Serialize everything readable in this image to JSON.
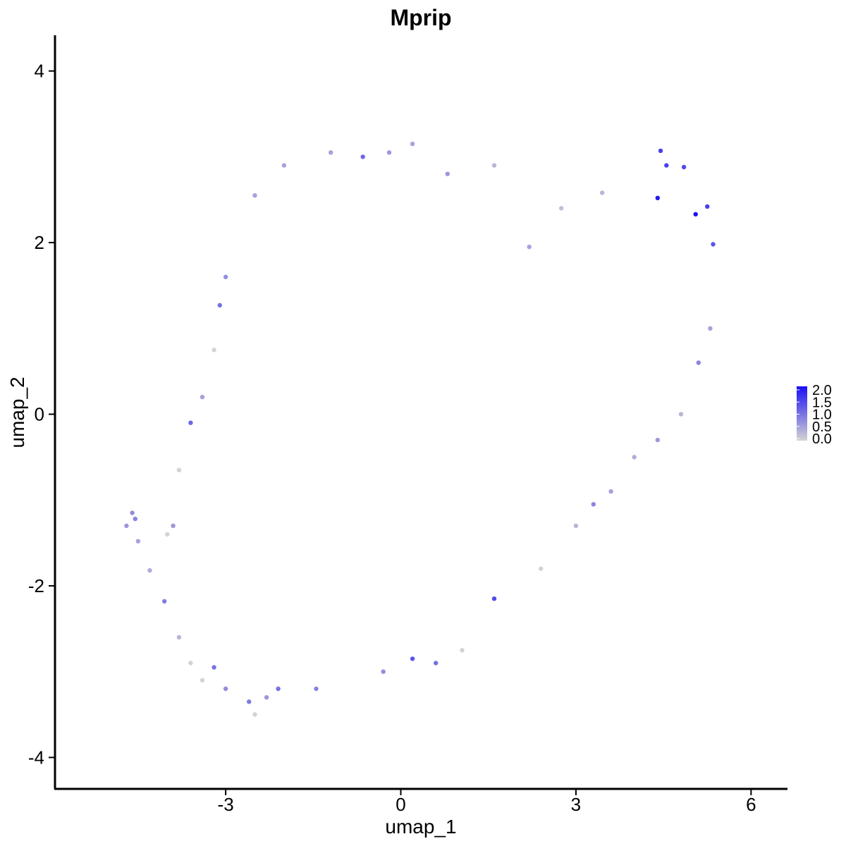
{
  "chart_data": {
    "type": "scatter",
    "title": "Mprip",
    "xlabel": "umap_1",
    "ylabel": "umap_2",
    "xlim": [
      -5.9,
      6.6
    ],
    "ylim": [
      -4.35,
      4.4
    ],
    "x_ticks": [
      -3,
      0,
      3,
      6
    ],
    "x_tick_labels": [
      "-3",
      "0",
      "3",
      "6"
    ],
    "y_ticks": [
      -4,
      -2,
      0,
      2,
      4
    ],
    "y_tick_labels": [
      "-4",
      "-2",
      "0",
      "2",
      "4"
    ],
    "grid": false,
    "legend": {
      "placement": "right",
      "type": "continuous colorbar",
      "range": [
        0.0,
        2.0
      ],
      "labels": [
        "2.0",
        "1.5",
        "1.0",
        "0.5",
        "0.0"
      ],
      "low_color": "#d3d3d3",
      "high_color": "#1a0ff5"
    },
    "colors": {
      "low": "#d3d3d3",
      "high": "#1a0ff5"
    },
    "points": [
      {
        "x": -4.7,
        "y": -1.3,
        "v": 0.6
      },
      {
        "x": -4.6,
        "y": -1.15,
        "v": 0.7
      },
      {
        "x": -4.55,
        "y": -1.22,
        "v": 0.8
      },
      {
        "x": -4.5,
        "y": -1.48,
        "v": 0.5
      },
      {
        "x": -4.3,
        "y": -1.82,
        "v": 0.4
      },
      {
        "x": -4.05,
        "y": -2.18,
        "v": 0.9
      },
      {
        "x": -4.0,
        "y": -1.4,
        "v": 0.0
      },
      {
        "x": -3.8,
        "y": -2.6,
        "v": 0.3
      },
      {
        "x": -3.6,
        "y": -2.9,
        "v": 0.0
      },
      {
        "x": -3.4,
        "y": -3.1,
        "v": 0.0
      },
      {
        "x": -3.2,
        "y": -2.95,
        "v": 1.0
      },
      {
        "x": -3.0,
        "y": -3.2,
        "v": 0.7
      },
      {
        "x": -2.6,
        "y": -3.35,
        "v": 0.9
      },
      {
        "x": -2.5,
        "y": -3.5,
        "v": 0.0
      },
      {
        "x": -2.3,
        "y": -3.3,
        "v": 0.6
      },
      {
        "x": -2.1,
        "y": -3.2,
        "v": 1.0
      },
      {
        "x": -1.45,
        "y": -3.2,
        "v": 0.8
      },
      {
        "x": -0.3,
        "y": -3.0,
        "v": 0.7
      },
      {
        "x": 0.2,
        "y": -2.85,
        "v": 1.3
      },
      {
        "x": 0.6,
        "y": -2.9,
        "v": 1.0
      },
      {
        "x": 1.05,
        "y": -2.75,
        "v": 0.0
      },
      {
        "x": 1.6,
        "y": -2.15,
        "v": 1.4
      },
      {
        "x": 2.4,
        "y": -1.8,
        "v": 0.0
      },
      {
        "x": 3.0,
        "y": -1.3,
        "v": 0.3
      },
      {
        "x": 3.3,
        "y": -1.05,
        "v": 0.8
      },
      {
        "x": 3.6,
        "y": -0.9,
        "v": 0.5
      },
      {
        "x": 4.0,
        "y": -0.5,
        "v": 0.4
      },
      {
        "x": 4.4,
        "y": -0.3,
        "v": 0.6
      },
      {
        "x": 4.8,
        "y": 0.0,
        "v": 0.3
      },
      {
        "x": 5.1,
        "y": 0.6,
        "v": 0.8
      },
      {
        "x": 5.3,
        "y": 1.0,
        "v": 0.5
      },
      {
        "x": 5.35,
        "y": 1.98,
        "v": 1.3
      },
      {
        "x": 5.25,
        "y": 2.42,
        "v": 1.5
      },
      {
        "x": 5.05,
        "y": 2.33,
        "v": 2.0
      },
      {
        "x": 4.85,
        "y": 2.88,
        "v": 1.4
      },
      {
        "x": 4.55,
        "y": 2.9,
        "v": 1.5
      },
      {
        "x": 4.45,
        "y": 3.07,
        "v": 1.5
      },
      {
        "x": 4.4,
        "y": 2.52,
        "v": 1.9
      },
      {
        "x": 3.45,
        "y": 2.58,
        "v": 0.3
      },
      {
        "x": 2.75,
        "y": 2.4,
        "v": 0.2
      },
      {
        "x": 2.2,
        "y": 1.95,
        "v": 0.5
      },
      {
        "x": 1.6,
        "y": 2.9,
        "v": 0.3
      },
      {
        "x": 0.8,
        "y": 2.8,
        "v": 0.6
      },
      {
        "x": 0.2,
        "y": 3.15,
        "v": 0.5
      },
      {
        "x": -0.2,
        "y": 3.05,
        "v": 0.6
      },
      {
        "x": -0.65,
        "y": 3.0,
        "v": 1.1
      },
      {
        "x": -1.2,
        "y": 3.05,
        "v": 0.5
      },
      {
        "x": -2.0,
        "y": 2.9,
        "v": 0.5
      },
      {
        "x": -2.5,
        "y": 2.55,
        "v": 0.5
      },
      {
        "x": -3.0,
        "y": 1.6,
        "v": 0.7
      },
      {
        "x": -3.1,
        "y": 1.27,
        "v": 1.0
      },
      {
        "x": -3.2,
        "y": 0.75,
        "v": 0.0
      },
      {
        "x": -3.4,
        "y": 0.2,
        "v": 0.5
      },
      {
        "x": -3.6,
        "y": -0.1,
        "v": 1.1
      },
      {
        "x": -3.8,
        "y": -0.65,
        "v": 0.0
      },
      {
        "x": -3.9,
        "y": -1.3,
        "v": 0.6
      }
    ]
  }
}
